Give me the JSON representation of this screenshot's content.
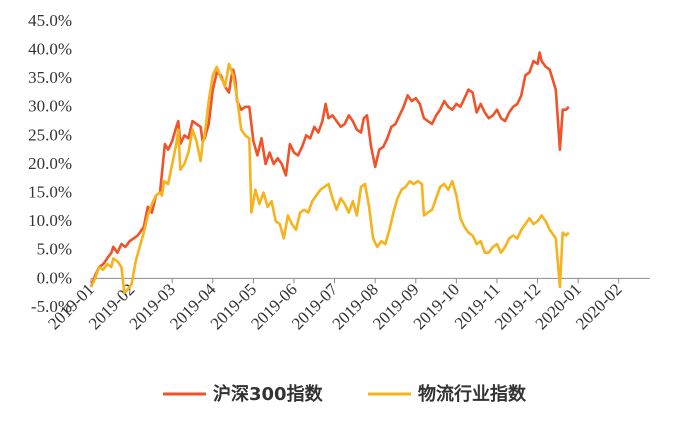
{
  "chart_data": {
    "type": "line",
    "title": "",
    "xlabel": "",
    "ylabel": "",
    "ylim": [
      -5,
      45
    ],
    "y_ticks": [
      "-5.0%",
      "0.0%",
      "5.0%",
      "10.0%",
      "15.0%",
      "20.0%",
      "25.0%",
      "30.0%",
      "35.0%",
      "40.0%",
      "45.0%"
    ],
    "x_ticks": [
      "2019-01",
      "2019-02",
      "2019-03",
      "2019-04",
      "2019-05",
      "2019-06",
      "2019-07",
      "2019-08",
      "2019-09",
      "2019-10",
      "2019-11",
      "2019-12",
      "2020-01",
      "2020-02"
    ],
    "grid": false,
    "legend_position": "bottom",
    "series": [
      {
        "name": "沪深300指数",
        "color": "#f0522a",
        "points": [
          [
            0.0,
            -1.5
          ],
          [
            0.1,
            0.5
          ],
          [
            0.2,
            2.0
          ],
          [
            0.3,
            2.5
          ],
          [
            0.4,
            3.5
          ],
          [
            0.5,
            4.5
          ],
          [
            0.55,
            5.5
          ],
          [
            0.65,
            4.5
          ],
          [
            0.75,
            6.0
          ],
          [
            0.85,
            5.5
          ],
          [
            0.95,
            6.5
          ],
          [
            1.05,
            7.0
          ],
          [
            1.15,
            7.5
          ],
          [
            1.3,
            9.0
          ],
          [
            1.4,
            12.5
          ],
          [
            1.5,
            11.5
          ],
          [
            1.6,
            14.5
          ],
          [
            1.7,
            15.0
          ],
          [
            1.75,
            18.5
          ],
          [
            1.82,
            23.5
          ],
          [
            1.9,
            22.5
          ],
          [
            2.0,
            24.0
          ],
          [
            2.1,
            26.5
          ],
          [
            2.15,
            27.5
          ],
          [
            2.2,
            23.5
          ],
          [
            2.3,
            25.0
          ],
          [
            2.4,
            24.5
          ],
          [
            2.5,
            27.5
          ],
          [
            2.6,
            27.0
          ],
          [
            2.7,
            26.5
          ],
          [
            2.75,
            24.0
          ],
          [
            2.8,
            24.5
          ],
          [
            2.9,
            27.0
          ],
          [
            3.0,
            33.0
          ],
          [
            3.1,
            36.0
          ],
          [
            3.2,
            35.5
          ],
          [
            3.3,
            33.5
          ],
          [
            3.4,
            32.5
          ],
          [
            3.45,
            35.0
          ],
          [
            3.5,
            36.5
          ],
          [
            3.55,
            35.0
          ],
          [
            3.6,
            31.0
          ],
          [
            3.7,
            29.5
          ],
          [
            3.8,
            30.0
          ],
          [
            3.9,
            30.0
          ],
          [
            4.0,
            24.0
          ],
          [
            4.1,
            21.5
          ],
          [
            4.2,
            24.5
          ],
          [
            4.3,
            20.0
          ],
          [
            4.4,
            22.0
          ],
          [
            4.5,
            20.0
          ],
          [
            4.6,
            21.0
          ],
          [
            4.7,
            20.0
          ],
          [
            4.8,
            18.0
          ],
          [
            4.9,
            23.5
          ],
          [
            5.0,
            22.0
          ],
          [
            5.1,
            21.5
          ],
          [
            5.2,
            23.0
          ],
          [
            5.3,
            25.0
          ],
          [
            5.4,
            24.5
          ],
          [
            5.5,
            26.5
          ],
          [
            5.6,
            25.5
          ],
          [
            5.7,
            27.5
          ],
          [
            5.78,
            30.5
          ],
          [
            5.85,
            28.0
          ],
          [
            5.95,
            28.5
          ],
          [
            6.05,
            27.5
          ],
          [
            6.15,
            26.5
          ],
          [
            6.25,
            27.0
          ],
          [
            6.35,
            28.5
          ],
          [
            6.45,
            27.5
          ],
          [
            6.55,
            26.0
          ],
          [
            6.65,
            25.5
          ],
          [
            6.72,
            28.0
          ],
          [
            6.8,
            28.5
          ],
          [
            6.9,
            23.0
          ],
          [
            7.0,
            19.5
          ],
          [
            7.1,
            22.5
          ],
          [
            7.2,
            23.0
          ],
          [
            7.3,
            24.5
          ],
          [
            7.4,
            26.5
          ],
          [
            7.5,
            27.0
          ],
          [
            7.6,
            28.5
          ],
          [
            7.7,
            30.0
          ],
          [
            7.8,
            32.0
          ],
          [
            7.9,
            31.0
          ],
          [
            8.0,
            31.5
          ],
          [
            8.1,
            30.5
          ],
          [
            8.2,
            28.0
          ],
          [
            8.3,
            27.5
          ],
          [
            8.4,
            27.0
          ],
          [
            8.5,
            28.5
          ],
          [
            8.6,
            29.5
          ],
          [
            8.7,
            31.0
          ],
          [
            8.8,
            30.0
          ],
          [
            8.9,
            29.5
          ],
          [
            9.0,
            30.5
          ],
          [
            9.1,
            30.0
          ],
          [
            9.2,
            31.5
          ],
          [
            9.3,
            33.0
          ],
          [
            9.4,
            32.5
          ],
          [
            9.5,
            29.0
          ],
          [
            9.6,
            30.5
          ],
          [
            9.7,
            29.0
          ],
          [
            9.8,
            28.0
          ],
          [
            9.9,
            28.5
          ],
          [
            10.0,
            29.5
          ],
          [
            10.1,
            28.0
          ],
          [
            10.2,
            27.5
          ],
          [
            10.3,
            29.0
          ],
          [
            10.4,
            30.0
          ],
          [
            10.5,
            30.5
          ],
          [
            10.6,
            32.0
          ],
          [
            10.7,
            35.5
          ],
          [
            10.8,
            36.0
          ],
          [
            10.9,
            38.0
          ],
          [
            11.0,
            37.5
          ],
          [
            11.05,
            39.5
          ],
          [
            11.1,
            38.0
          ],
          [
            11.2,
            37.0
          ],
          [
            11.3,
            36.5
          ],
          [
            11.45,
            33.0
          ],
          [
            11.55,
            22.5
          ],
          [
            11.62,
            29.5
          ],
          [
            11.7,
            29.5
          ],
          [
            11.77,
            30.0
          ]
        ]
      },
      {
        "name": "物流行业指数",
        "color": "#f6b31c",
        "points": [
          [
            0.0,
            -1.5
          ],
          [
            0.1,
            0.0
          ],
          [
            0.2,
            2.0
          ],
          [
            0.3,
            1.5
          ],
          [
            0.4,
            2.5
          ],
          [
            0.5,
            2.0
          ],
          [
            0.55,
            3.5
          ],
          [
            0.65,
            3.0
          ],
          [
            0.75,
            2.0
          ],
          [
            0.82,
            -2.5
          ],
          [
            0.9,
            -2.0
          ],
          [
            1.0,
            -1.0
          ],
          [
            1.1,
            3.0
          ],
          [
            1.2,
            5.5
          ],
          [
            1.3,
            8.0
          ],
          [
            1.4,
            11.0
          ],
          [
            1.5,
            13.0
          ],
          [
            1.6,
            14.5
          ],
          [
            1.7,
            15.0
          ],
          [
            1.75,
            14.5
          ],
          [
            1.8,
            17.0
          ],
          [
            1.9,
            16.5
          ],
          [
            2.0,
            20.0
          ],
          [
            2.1,
            23.5
          ],
          [
            2.15,
            26.0
          ],
          [
            2.2,
            19.0
          ],
          [
            2.3,
            20.0
          ],
          [
            2.4,
            22.0
          ],
          [
            2.5,
            26.0
          ],
          [
            2.6,
            24.0
          ],
          [
            2.7,
            20.5
          ],
          [
            2.75,
            23.5
          ],
          [
            2.8,
            25.0
          ],
          [
            2.9,
            31.0
          ],
          [
            3.0,
            35.5
          ],
          [
            3.1,
            37.0
          ],
          [
            3.2,
            35.0
          ],
          [
            3.25,
            34.5
          ],
          [
            3.3,
            33.5
          ],
          [
            3.4,
            37.5
          ],
          [
            3.5,
            35.5
          ],
          [
            3.6,
            31.5
          ],
          [
            3.7,
            26.0
          ],
          [
            3.8,
            25.0
          ],
          [
            3.9,
            24.5
          ],
          [
            3.95,
            11.5
          ],
          [
            4.05,
            15.5
          ],
          [
            4.15,
            13.0
          ],
          [
            4.25,
            15.0
          ],
          [
            4.35,
            12.5
          ],
          [
            4.45,
            13.5
          ],
          [
            4.55,
            10.0
          ],
          [
            4.65,
            9.5
          ],
          [
            4.75,
            7.0
          ],
          [
            4.85,
            11.0
          ],
          [
            4.95,
            9.5
          ],
          [
            5.05,
            8.5
          ],
          [
            5.15,
            11.5
          ],
          [
            5.25,
            12.0
          ],
          [
            5.35,
            11.5
          ],
          [
            5.45,
            13.5
          ],
          [
            5.55,
            14.5
          ],
          [
            5.65,
            15.5
          ],
          [
            5.75,
            16.0
          ],
          [
            5.85,
            16.5
          ],
          [
            5.95,
            14.0
          ],
          [
            6.05,
            12.0
          ],
          [
            6.15,
            14.0
          ],
          [
            6.25,
            13.0
          ],
          [
            6.35,
            11.5
          ],
          [
            6.45,
            13.5
          ],
          [
            6.55,
            11.0
          ],
          [
            6.65,
            16.0
          ],
          [
            6.75,
            16.5
          ],
          [
            6.85,
            12.5
          ],
          [
            6.95,
            7.0
          ],
          [
            7.05,
            5.5
          ],
          [
            7.15,
            6.5
          ],
          [
            7.25,
            6.0
          ],
          [
            7.35,
            8.5
          ],
          [
            7.45,
            11.5
          ],
          [
            7.55,
            14.0
          ],
          [
            7.65,
            15.5
          ],
          [
            7.75,
            16.0
          ],
          [
            7.85,
            17.0
          ],
          [
            7.95,
            16.5
          ],
          [
            8.05,
            17.0
          ],
          [
            8.15,
            16.5
          ],
          [
            8.2,
            11.0
          ],
          [
            8.3,
            11.5
          ],
          [
            8.4,
            12.0
          ],
          [
            8.5,
            14.0
          ],
          [
            8.6,
            16.0
          ],
          [
            8.7,
            16.5
          ],
          [
            8.8,
            15.5
          ],
          [
            8.9,
            17.0
          ],
          [
            9.0,
            14.5
          ],
          [
            9.1,
            10.5
          ],
          [
            9.2,
            9.0
          ],
          [
            9.3,
            8.0
          ],
          [
            9.4,
            7.5
          ],
          [
            9.5,
            6.0
          ],
          [
            9.6,
            6.5
          ],
          [
            9.7,
            4.5
          ],
          [
            9.8,
            4.5
          ],
          [
            9.9,
            5.5
          ],
          [
            10.0,
            6.0
          ],
          [
            10.1,
            4.5
          ],
          [
            10.2,
            5.5
          ],
          [
            10.3,
            7.0
          ],
          [
            10.4,
            7.5
          ],
          [
            10.5,
            7.0
          ],
          [
            10.6,
            8.5
          ],
          [
            10.7,
            9.5
          ],
          [
            10.8,
            10.5
          ],
          [
            10.9,
            9.5
          ],
          [
            11.0,
            10.0
          ],
          [
            11.1,
            11.0
          ],
          [
            11.2,
            10.0
          ],
          [
            11.3,
            8.5
          ],
          [
            11.45,
            7.0
          ],
          [
            11.55,
            -1.5
          ],
          [
            11.62,
            8.0
          ],
          [
            11.7,
            7.5
          ],
          [
            11.77,
            8.0
          ]
        ]
      }
    ]
  }
}
